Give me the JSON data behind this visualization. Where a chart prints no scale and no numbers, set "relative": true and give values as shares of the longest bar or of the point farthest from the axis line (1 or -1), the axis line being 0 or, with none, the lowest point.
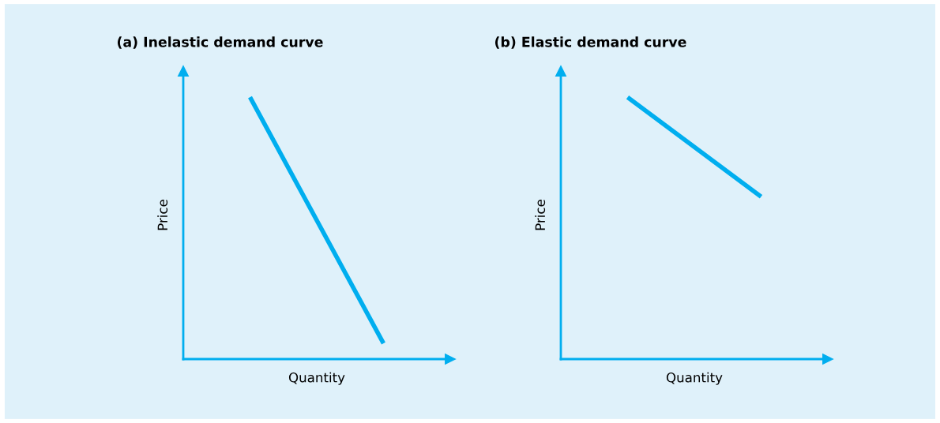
{
  "chart_data": [
    {
      "type": "line",
      "title": "(a) Inelastic demand curve",
      "xlabel": "Quantity",
      "ylabel": "Price",
      "categories": [
        null,
        null
      ],
      "relative": true,
      "tick_labels": false,
      "series": [
        {
          "color": "#00aeef",
          "values": [
            1,
            0.06
          ]
        }
      ]
    },
    {
      "type": "line",
      "title": "(b) Elastic demand curve",
      "xlabel": "Quantity",
      "ylabel": "Price",
      "categories": [
        null,
        null
      ],
      "relative": true,
      "tick_labels": false,
      "series": [
        {
          "color": "#00aeef",
          "values": [
            1,
            0.62
          ]
        }
      ]
    }
  ]
}
